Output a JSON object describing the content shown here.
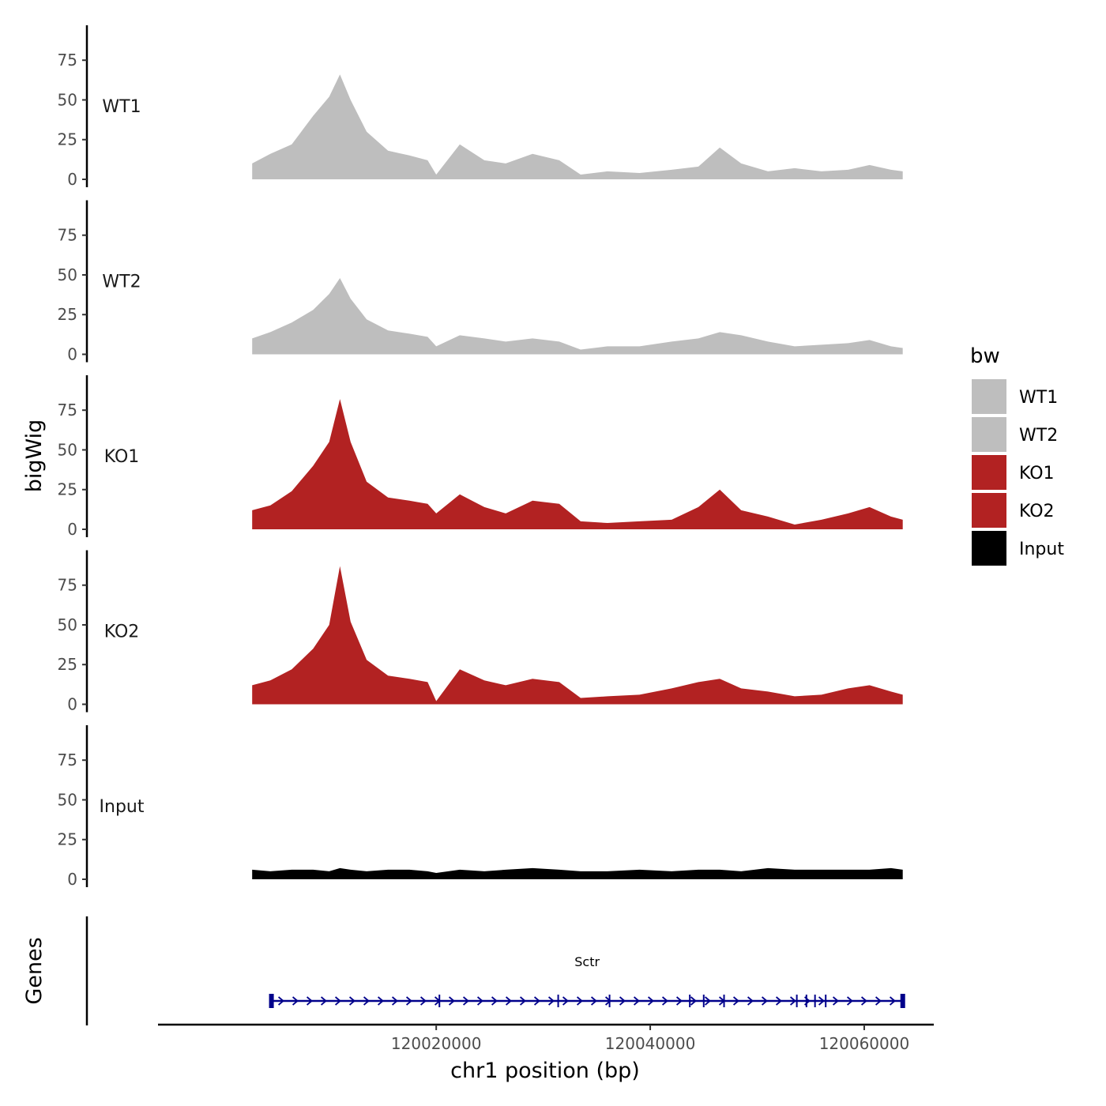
{
  "chart_data": {
    "type": "area",
    "ylabel": "bigWig",
    "xlabel": "chr1 position (bp)",
    "genes_label": "Genes",
    "ylim": [
      0,
      95
    ],
    "yticks": [
      0,
      25,
      50,
      75
    ],
    "xlim": [
      119994000,
      120066500
    ],
    "xticks": [
      120020000,
      120040000,
      120060000
    ],
    "xtick_labels": [
      "120020000",
      "120040000",
      "120060000"
    ],
    "region": [
      120002800,
      120063600
    ],
    "legend": {
      "title": "bw",
      "entries": [
        {
          "label": "WT1",
          "color": "#bebebe"
        },
        {
          "label": "WT2",
          "color": "#bebebe"
        },
        {
          "label": "KO1",
          "color": "#b22222"
        },
        {
          "label": "KO2",
          "color": "#b22222"
        },
        {
          "label": "Input",
          "color": "#000000"
        }
      ]
    },
    "tracks": [
      {
        "name": "WT1",
        "color": "#bebebe",
        "x": [
          120002800,
          120004500,
          120006500,
          120008500,
          120010000,
          120011000,
          120012000,
          120013500,
          120015500,
          120017500,
          120019200,
          120020000,
          120022200,
          120024500,
          120026500,
          120029000,
          120031500,
          120033500,
          120036000,
          120039000,
          120042000,
          120044500,
          120046500,
          120048500,
          120051000,
          120053500,
          120056000,
          120058500,
          120060500,
          120062500,
          120063600
        ],
        "values": [
          10,
          16,
          22,
          40,
          52,
          66,
          50,
          30,
          18,
          15,
          12,
          3,
          22,
          12,
          10,
          16,
          12,
          3,
          5,
          4,
          6,
          8,
          20,
          10,
          5,
          7,
          5,
          6,
          9,
          6,
          5
        ]
      },
      {
        "name": "WT2",
        "color": "#bebebe",
        "x": [
          120002800,
          120004500,
          120006500,
          120008500,
          120010000,
          120011000,
          120012000,
          120013500,
          120015500,
          120017500,
          120019200,
          120020000,
          120022200,
          120024500,
          120026500,
          120029000,
          120031500,
          120033500,
          120036000,
          120039000,
          120042000,
          120044500,
          120046500,
          120048500,
          120051000,
          120053500,
          120056000,
          120058500,
          120060500,
          120062500,
          120063600
        ],
        "values": [
          10,
          14,
          20,
          28,
          38,
          48,
          35,
          22,
          15,
          13,
          11,
          5,
          12,
          10,
          8,
          10,
          8,
          3,
          5,
          5,
          8,
          10,
          14,
          12,
          8,
          5,
          6,
          7,
          9,
          5,
          4
        ]
      },
      {
        "name": "KO1",
        "color": "#b22222",
        "x": [
          120002800,
          120004500,
          120006500,
          120008500,
          120010000,
          120011000,
          120012000,
          120013500,
          120015500,
          120017500,
          120019200,
          120020000,
          120022200,
          120024500,
          120026500,
          120029000,
          120031500,
          120033500,
          120036000,
          120039000,
          120042000,
          120044500,
          120046500,
          120048500,
          120051000,
          120053500,
          120056000,
          120058500,
          120060500,
          120062500,
          120063600
        ],
        "values": [
          12,
          15,
          24,
          40,
          55,
          82,
          55,
          30,
          20,
          18,
          16,
          10,
          22,
          14,
          10,
          18,
          16,
          5,
          4,
          5,
          6,
          14,
          25,
          12,
          8,
          3,
          6,
          10,
          14,
          8,
          6
        ]
      },
      {
        "name": "KO2",
        "color": "#b22222",
        "x": [
          120002800,
          120004500,
          120006500,
          120008500,
          120010000,
          120011000,
          120012000,
          120013500,
          120015500,
          120017500,
          120019200,
          120020000,
          120022200,
          120024500,
          120026500,
          120029000,
          120031500,
          120033500,
          120036000,
          120039000,
          120042000,
          120044500,
          120046500,
          120048500,
          120051000,
          120053500,
          120056000,
          120058500,
          120060500,
          120062500,
          120063600
        ],
        "values": [
          12,
          15,
          22,
          35,
          50,
          87,
          52,
          28,
          18,
          16,
          14,
          2,
          22,
          15,
          12,
          16,
          14,
          4,
          5,
          6,
          10,
          14,
          16,
          10,
          8,
          5,
          6,
          10,
          12,
          8,
          6
        ]
      },
      {
        "name": "Input",
        "color": "#000000",
        "x": [
          120002800,
          120004500,
          120006500,
          120008500,
          120010000,
          120011000,
          120012000,
          120013500,
          120015500,
          120017500,
          120019200,
          120020000,
          120022200,
          120024500,
          120026500,
          120029000,
          120031500,
          120033500,
          120036000,
          120039000,
          120042000,
          120044500,
          120046500,
          120048500,
          120051000,
          120053500,
          120056000,
          120058500,
          120060500,
          120062500,
          120063600
        ],
        "values": [
          6,
          5,
          6,
          6,
          5,
          7,
          6,
          5,
          6,
          6,
          5,
          4,
          6,
          5,
          6,
          7,
          6,
          5,
          5,
          6,
          5,
          6,
          6,
          5,
          7,
          6,
          6,
          6,
          6,
          7,
          6
        ]
      }
    ],
    "gene": {
      "name": "Sctr",
      "color": "#00008b",
      "start": 120004600,
      "end": 120063600,
      "strand": "+",
      "exons": [
        120004600,
        120020300,
        120031400,
        120036200,
        120043700,
        120045000,
        120046900,
        120053700,
        120054600,
        120055400,
        120056400,
        120063600
      ]
    }
  }
}
